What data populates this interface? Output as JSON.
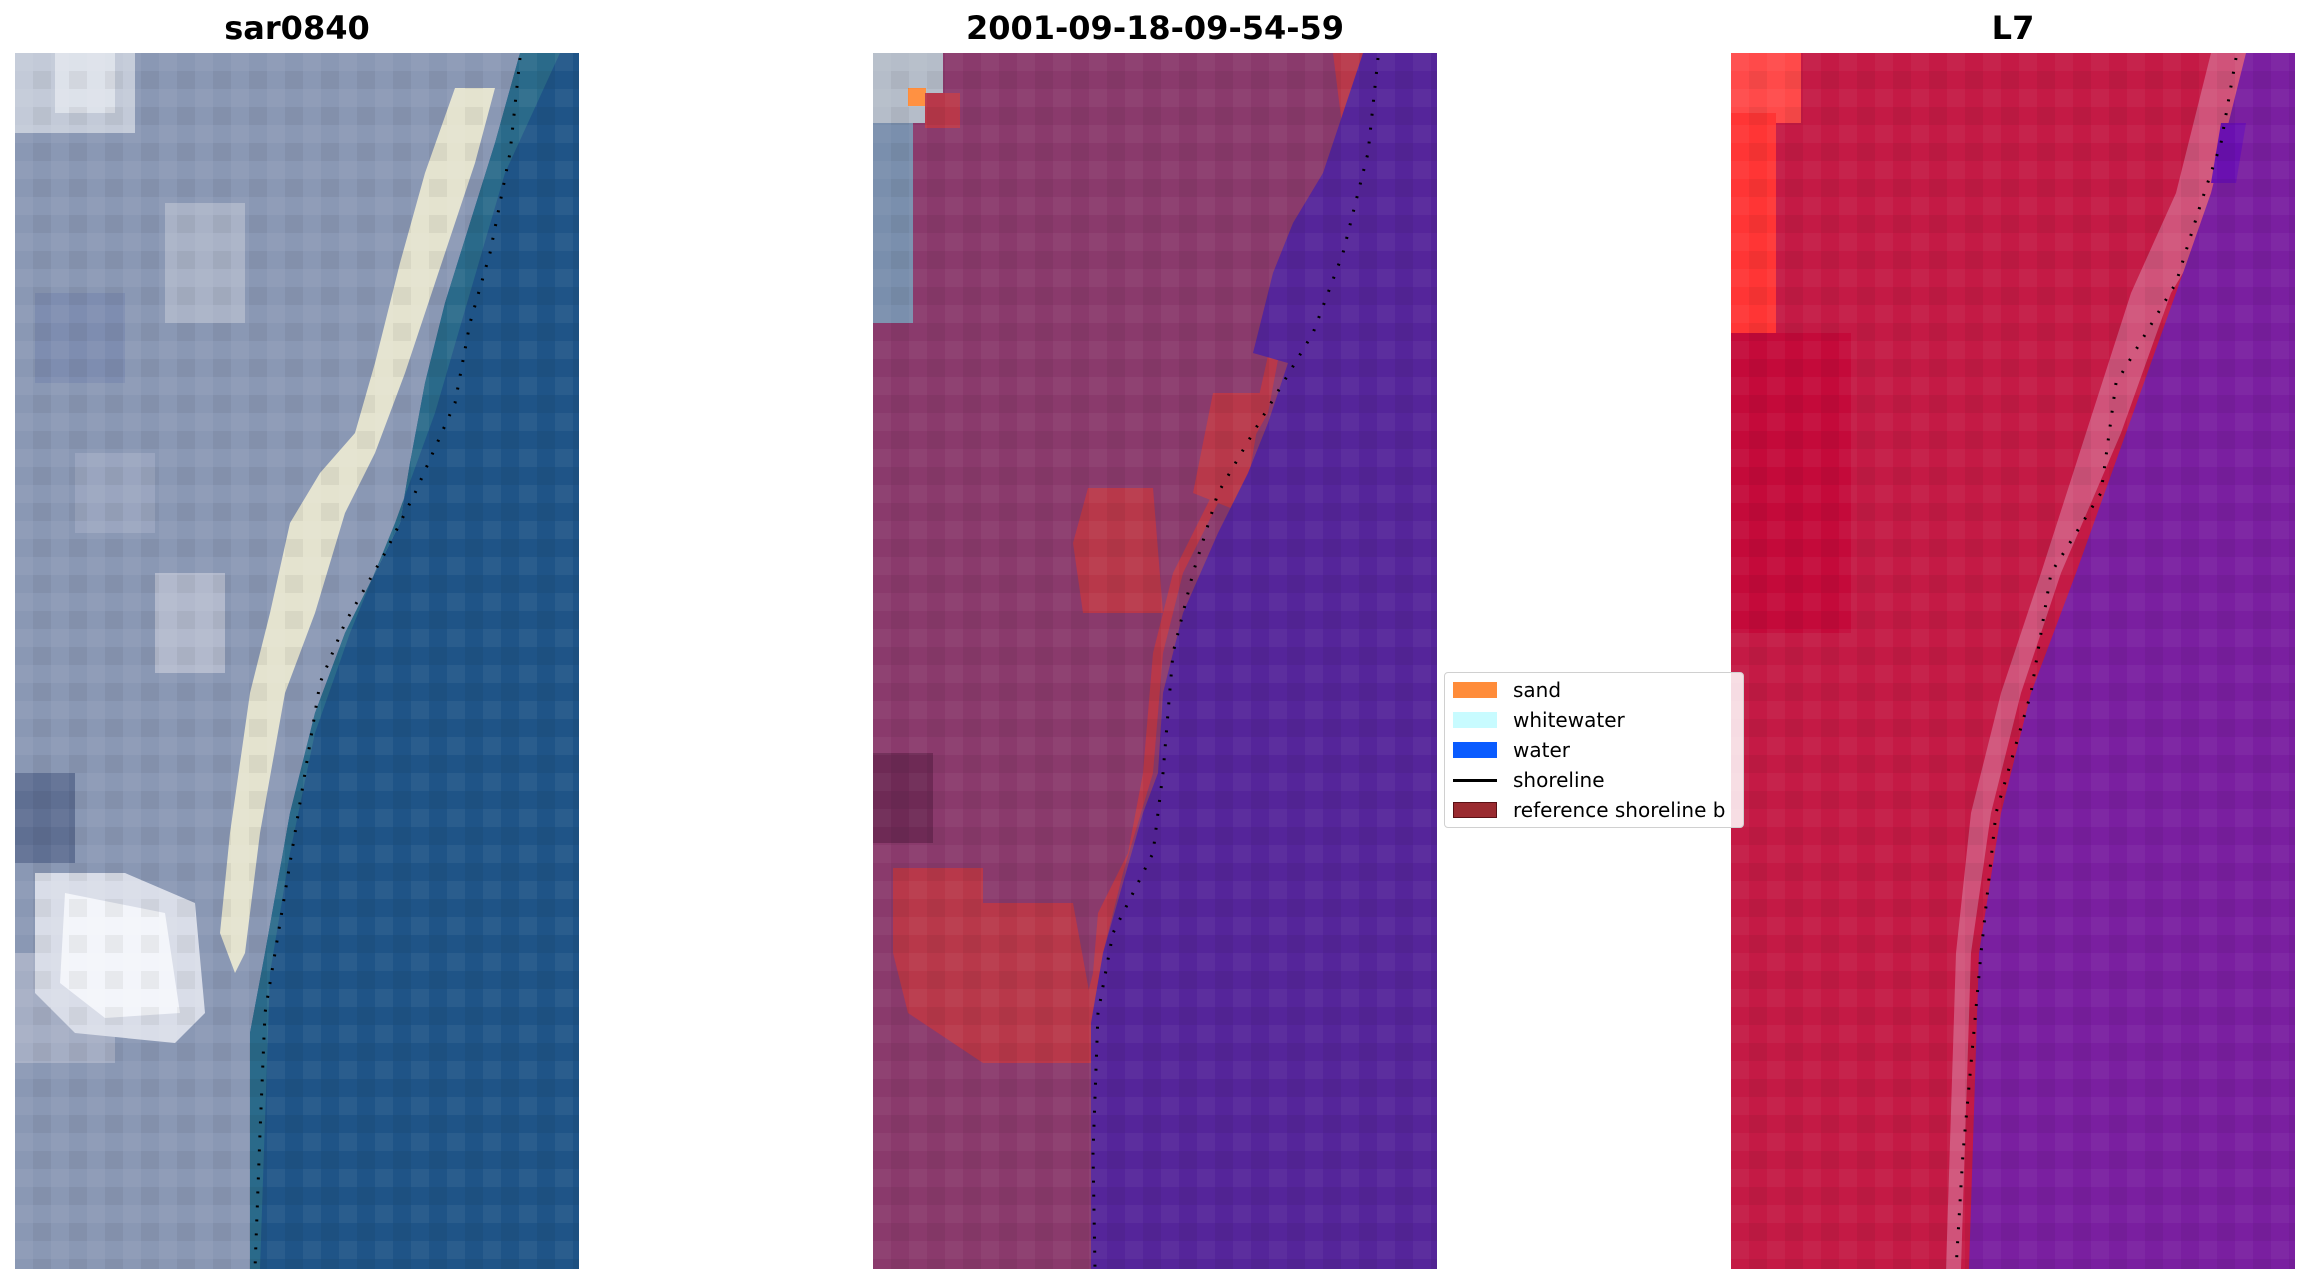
{
  "panels": [
    {
      "title": "sar0840"
    },
    {
      "title": "2001-09-18-09-54-59"
    },
    {
      "title": "L7"
    }
  ],
  "legend": {
    "items": [
      {
        "label": "sand",
        "color": "#ff8c3a",
        "kind": "swatch"
      },
      {
        "label": "whitewater",
        "color": "#c8fbff",
        "kind": "swatch"
      },
      {
        "label": "water",
        "color": "#0a5cff",
        "kind": "swatch"
      },
      {
        "label": "shoreline",
        "color": "#000000",
        "kind": "line"
      },
      {
        "label": "reference shoreline b",
        "color": "#9a2b30",
        "kind": "swatch"
      }
    ]
  }
}
